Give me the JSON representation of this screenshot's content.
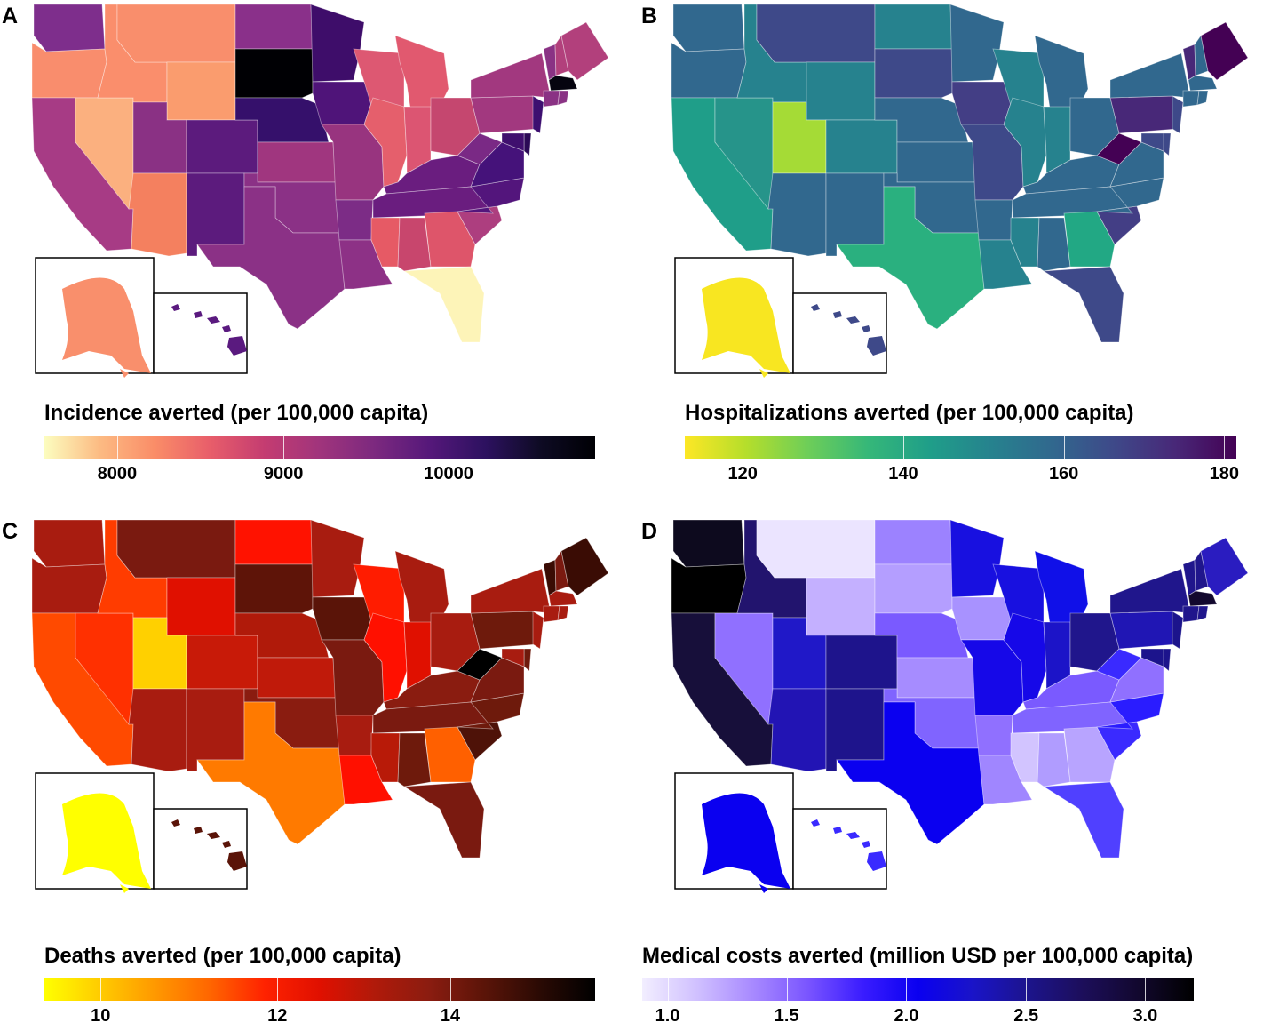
{
  "panels": [
    {
      "letter": "A",
      "title": "Incidence averted (per 100,000 capita)",
      "colormap": "magma-reversed",
      "gradient": [
        "#fcfdbf",
        "#fcbb83",
        "#fa8d68",
        "#e85e6a",
        "#c43c71",
        "#a0347c",
        "#7c297f",
        "#55187a",
        "#2d1160",
        "#0e0b24",
        "#000004"
      ],
      "ticks": [
        {
          "value": "8000",
          "pos": 0.132
        },
        {
          "value": "9000",
          "pos": 0.434
        },
        {
          "value": "10000",
          "pos": 0.734
        }
      ],
      "fills": {
        "WA": "#7e2e8c",
        "OR": "#f98d6d",
        "CA": "#a73b85",
        "NV": "#fbb07f",
        "ID": "#fa8e6c",
        "MT": "#f98e6c",
        "WY": "#fa9c6e",
        "UT": "#8a3184",
        "AZ": "#f4805f",
        "CO": "#5c1b7d",
        "NM": "#5c1b7d",
        "ND": "#8a308a",
        "SD": "#000004",
        "NE": "#35106b",
        "KS": "#a0367f",
        "OK": "#8b3186",
        "TX": "#8b3186",
        "MN": "#3e0d6a",
        "IA": "#4f1479",
        "MO": "#98347f",
        "AR": "#7c2c86",
        "LA": "#8d3186",
        "WI": "#dd5872",
        "IL": "#e55f6c",
        "MI": "#e1596f",
        "IN": "#dc5572",
        "OH": "#c5476f",
        "KY": "#6a1d7f",
        "TN": "#6a1d7f",
        "MS": "#e65a65",
        "AL": "#c8466d",
        "GA": "#de556a",
        "FL": "#fdf4b8",
        "SC": "#ad3e7f",
        "NC": "#53157c",
        "VA": "#45127a",
        "WV": "#7a2985",
        "PA": "#a2387f",
        "NY": "#a2387f",
        "ME": "#b2407c",
        "NH": "#b2407c",
        "VT": "#8a3284",
        "MA": "#05040f",
        "CT": "#8a3284",
        "RI": "#8a3284",
        "NJ": "#3d0f70",
        "DE": "#2b0a56",
        "MD": "#3f0f6e",
        "AK": "#f98f6c",
        "HI": "#5a1a7f"
      }
    },
    {
      "letter": "B",
      "title": "Hospitalizations averted (per 100,000 capita)",
      "colormap": "viridis-reversed",
      "gradient": [
        "#fde725",
        "#b5de2b",
        "#6ece58",
        "#35b779",
        "#1f9e89",
        "#26828e",
        "#31688e",
        "#3e4989",
        "#482878",
        "#440154"
      ],
      "ticks": [
        {
          "value": "120",
          "pos": 0.105
        },
        {
          "value": "140",
          "pos": 0.396
        },
        {
          "value": "160",
          "pos": 0.687
        },
        {
          "value": "180",
          "pos": 0.978
        }
      ],
      "fills": {
        "WA": "#31688e",
        "OR": "#31688e",
        "CA": "#1f9e89",
        "NV": "#26948a",
        "ID": "#26828e",
        "MT": "#3e4989",
        "WY": "#26828e",
        "UT": "#a5db36",
        "AZ": "#31688e",
        "CO": "#26828e",
        "NM": "#31688e",
        "ND": "#26828e",
        "SD": "#3e4989",
        "NE": "#31688e",
        "KS": "#31688e",
        "OK": "#31688e",
        "TX": "#2ab07f",
        "MN": "#31688e",
        "IA": "#433e85",
        "MO": "#3e4989",
        "AR": "#31688e",
        "LA": "#26828e",
        "WI": "#26828e",
        "IL": "#26828e",
        "MI": "#31688e",
        "IN": "#26828e",
        "OH": "#31688e",
        "KY": "#31688e",
        "TN": "#31688e",
        "MS": "#26828e",
        "AL": "#31688e",
        "GA": "#22a884",
        "FL": "#3e4989",
        "SC": "#433e85",
        "NC": "#31688e",
        "VA": "#31688e",
        "WV": "#440154",
        "PA": "#482878",
        "NY": "#31688e",
        "ME": "#440154",
        "NH": "#31688e",
        "VT": "#482878",
        "MA": "#31688e",
        "CT": "#31688e",
        "RI": "#31688e",
        "NJ": "#3e4989",
        "DE": "#3e4989",
        "MD": "#3e4989",
        "AK": "#f8e621",
        "HI": "#3e4989"
      }
    },
    {
      "letter": "C",
      "title": "Deaths averted (per 100,000 capita)",
      "colormap": "hot-reversed",
      "gradient": [
        "#ffff00",
        "#ffcc00",
        "#ff9900",
        "#ff6600",
        "#ff2200",
        "#e01000",
        "#b01a0a",
        "#8a1c10",
        "#5a1408",
        "#2a0a04",
        "#000000"
      ],
      "ticks": [
        {
          "value": "10",
          "pos": 0.102
        },
        {
          "value": "12",
          "pos": 0.423
        },
        {
          "value": "14",
          "pos": 0.737
        }
      ],
      "fills": {
        "WA": "#a81c10",
        "OR": "#a81c10",
        "CA": "#ff4a00",
        "NV": "#ff3000",
        "ID": "#ff3c00",
        "MT": "#7a1a10",
        "WY": "#e01000",
        "UT": "#ffd000",
        "AZ": "#a81c10",
        "CO": "#c81a08",
        "NM": "#a81c10",
        "ND": "#ff1200",
        "SD": "#5e1408",
        "NE": "#b01a0a",
        "KS": "#c01a0a",
        "OK": "#8a1c10",
        "TX": "#ff7a00",
        "MN": "#a81c10",
        "IA": "#5a1408",
        "MO": "#7a1a10",
        "AR": "#a81c10",
        "LA": "#ff1000",
        "WI": "#ff1c00",
        "IL": "#ff1000",
        "MI": "#a81c10",
        "IN": "#e01000",
        "OH": "#a81c10",
        "KY": "#8a1c10",
        "TN": "#7a1a10",
        "MS": "#b81a08",
        "AL": "#6e1a0c",
        "GA": "#ff6000",
        "FL": "#7a1a10",
        "SC": "#4e1208",
        "NC": "#6e1a0c",
        "VA": "#7a1a10",
        "WV": "#000000",
        "PA": "#6e1a0c",
        "NY": "#a81c10",
        "ME": "#3a0c04",
        "NH": "#7a1a10",
        "VT": "#3a0c04",
        "MA": "#a81c10",
        "CT": "#a81c10",
        "RI": "#a81c10",
        "NJ": "#a81c10",
        "DE": "#6e1a0c",
        "MD": "#a81c10",
        "AK": "#ffff00",
        "HI": "#5a1408"
      }
    },
    {
      "letter": "D",
      "title": "Medical costs averted (million USD per 100,000 capita)",
      "colormap": "blues-purple",
      "gradient": [
        "#f2eeff",
        "#d0c0ff",
        "#a88aff",
        "#7a55ff",
        "#3a1cff",
        "#0a00f0",
        "#1a14c8",
        "#1c148c",
        "#1c0e5a",
        "#12082e",
        "#000000"
      ],
      "ticks": [
        {
          "value": "1.0",
          "pos": 0.046
        },
        {
          "value": "1.5",
          "pos": 0.262
        },
        {
          "value": "2.0",
          "pos": 0.479
        },
        {
          "value": "2.5",
          "pos": 0.696
        },
        {
          "value": "3.0",
          "pos": 0.912
        }
      ],
      "fills": {
        "WA": "#0d0a1e",
        "OR": "#000000",
        "CA": "#170f3a",
        "NV": "#9070ff",
        "ID": "#22146e",
        "MT": "#ebe4ff",
        "WY": "#c4b0ff",
        "UT": "#2018c8",
        "AZ": "#2214b4",
        "CO": "#1e148c",
        "NM": "#1e148c",
        "ND": "#9c82ff",
        "SD": "#b49eff",
        "NE": "#7a5aff",
        "KS": "#a68cff",
        "OK": "#8064ff",
        "TX": "#0a00f0",
        "MN": "#1810e0",
        "IA": "#a892ff",
        "MO": "#1608e8",
        "AR": "#9070ff",
        "LA": "#a086ff",
        "WI": "#1810e0",
        "IL": "#1608e8",
        "MI": "#1010e8",
        "IN": "#1c14c8",
        "OH": "#20168c",
        "KY": "#7a5aff",
        "TN": "#8064ff",
        "MS": "#d2c4ff",
        "AL": "#b09cff",
        "GA": "#b8a4ff",
        "FL": "#5040ff",
        "SC": "#3a2aff",
        "NC": "#2a1cff",
        "VA": "#9070ff",
        "WV": "#3a2aff",
        "PA": "#2016b4",
        "NY": "#20168c",
        "ME": "#2a1cc0",
        "NH": "#20168c",
        "VT": "#20168c",
        "MA": "#12082e",
        "CT": "#20168c",
        "RI": "#20168c",
        "NJ": "#1c148c",
        "DE": "#1c148c",
        "MD": "#1c148c",
        "AK": "#0a00f0",
        "HI": "#3a2aff"
      }
    }
  ]
}
